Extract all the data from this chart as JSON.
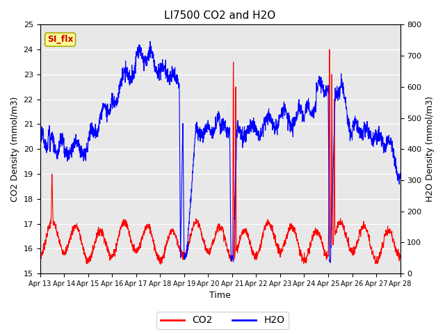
{
  "title": "LI7500 CO2 and H2O",
  "xlabel": "Time",
  "ylabel_left": "CO2 Density (mmol/m3)",
  "ylabel_right": "H2O Density (mmol/m3)",
  "ylim_left": [
    15.0,
    25.0
  ],
  "ylim_right": [
    0,
    800
  ],
  "yticks_left": [
    15.0,
    16.0,
    17.0,
    18.0,
    19.0,
    20.0,
    21.0,
    22.0,
    23.0,
    24.0,
    25.0
  ],
  "yticks_right": [
    0,
    100,
    200,
    300,
    400,
    500,
    600,
    700,
    800
  ],
  "xtick_labels": [
    "Apr 13",
    "Apr 14",
    "Apr 15",
    "Apr 16",
    "Apr 17",
    "Apr 18",
    "Apr 19",
    "Apr 20",
    "Apr 21",
    "Apr 22",
    "Apr 23",
    "Apr 24",
    "Apr 25",
    "Apr 26",
    "Apr 27",
    "Apr 28"
  ],
  "n_days": 15,
  "background_color": "#e8e8e8",
  "co2_color": "#ff0000",
  "h2o_color": "#0000ff",
  "legend_label_co2": "CO2",
  "legend_label_h2o": "H2O",
  "annotation_text": "SI_flx",
  "annotation_color": "#cc0000",
  "annotation_bg": "#ffff99",
  "annotation_border": "#aaaa00"
}
